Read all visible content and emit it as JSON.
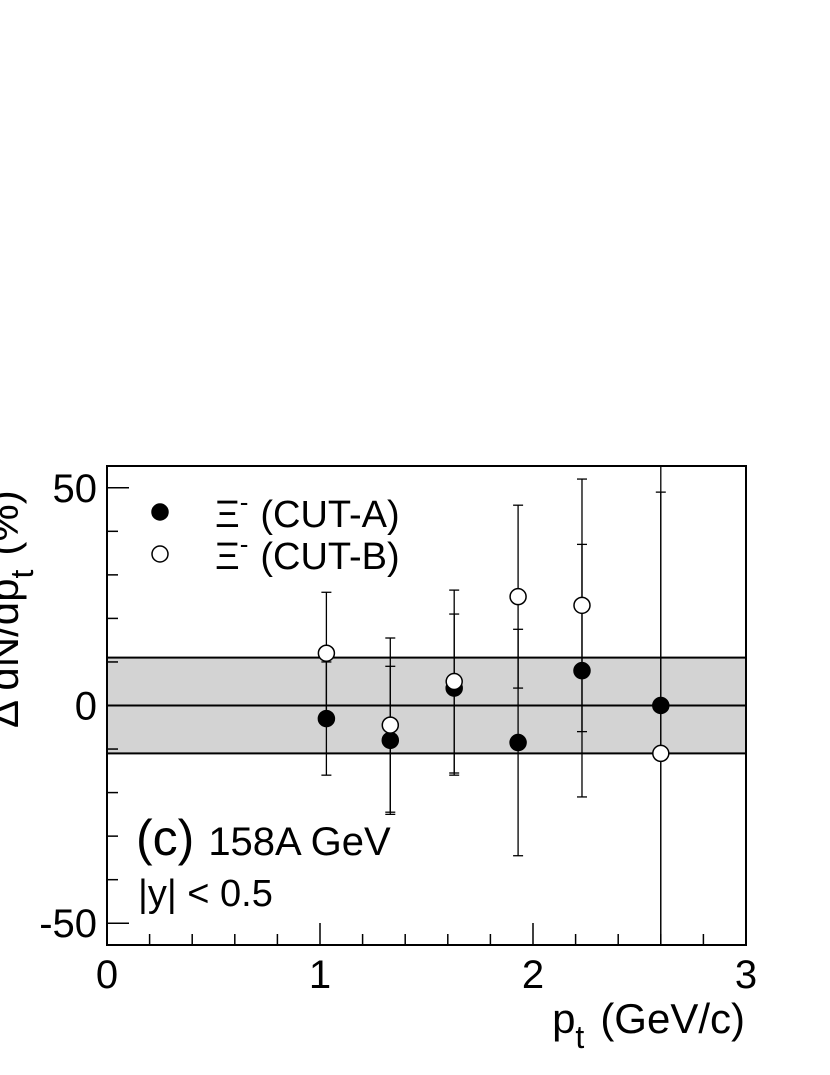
{
  "chart_data": {
    "type": "scatter",
    "xlabel": "p",
    "xlabel_sub": "t",
    "xlabel_units": "(GeV/c)",
    "ylabel": "Δ dN/dp",
    "ylabel_sub": "t",
    "ylabel_units": "(%)",
    "xlim": [
      0,
      3
    ],
    "ylim": [
      -55,
      55
    ],
    "xticks": [
      0,
      1,
      2,
      3
    ],
    "yticks": [
      -50,
      0,
      50
    ],
    "legend_position": "top-left",
    "band": {
      "low": -11,
      "high": 11,
      "center": 0,
      "color": "#d3d3d3"
    },
    "series": [
      {
        "name": "Ξ⁻ (CUT-A)",
        "name_symbol": "Ξ",
        "name_sup": "-",
        "name_rest": "(CUT-A)",
        "marker": "filled",
        "x": [
          1.03,
          1.33,
          1.63,
          1.93,
          2.23,
          2.6
        ],
        "y": [
          -3,
          -8,
          4,
          -8.5,
          8,
          0
        ],
        "yerr_low": [
          13,
          17,
          20,
          26,
          29,
          60
        ],
        "yerr_high": [
          13,
          17,
          17,
          26,
          29,
          60
        ]
      },
      {
        "name": "Ξ⁻ (CUT-B)",
        "name_symbol": "Ξ",
        "name_sup": "-",
        "name_rest": "(CUT-B)",
        "marker": "open",
        "x": [
          1.03,
          1.33,
          1.63,
          1.93,
          2.23,
          2.6
        ],
        "y": [
          12,
          -4.5,
          5.5,
          25,
          23,
          -11
        ],
        "yerr_low": [
          14,
          20,
          21,
          21,
          29,
          60
        ],
        "yerr_high": [
          14,
          20,
          21,
          21,
          29,
          60
        ]
      }
    ],
    "annotations": [
      {
        "label": "(c)",
        "text": "158A GeV"
      },
      {
        "text": "|y| < 0.5"
      }
    ]
  }
}
